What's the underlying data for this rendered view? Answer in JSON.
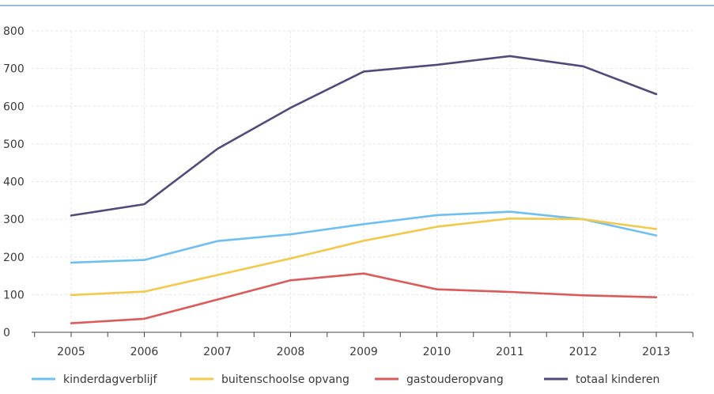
{
  "chart_data": {
    "type": "line",
    "title": "",
    "xlabel": "",
    "ylabel": "",
    "x": [
      "2005",
      "2006",
      "2007",
      "2008",
      "2009",
      "2010",
      "2011",
      "2012",
      "2013"
    ],
    "ylim": [
      0,
      800
    ],
    "yticks": [
      0,
      100,
      200,
      300,
      400,
      500,
      600,
      700,
      800
    ],
    "grid": true,
    "legend_position": "bottom",
    "series": [
      {
        "name": "kinderdagverblijf",
        "color": "#6ec0f0",
        "values": [
          185,
          192,
          242,
          260,
          287,
          311,
          320,
          300,
          257
        ]
      },
      {
        "name": "buitenschoolse opvang",
        "color": "#f3c94b",
        "values": [
          99,
          108,
          152,
          196,
          243,
          280,
          302,
          300,
          274
        ]
      },
      {
        "name": "gastouderopvang",
        "color": "#dc5a5a",
        "values": [
          24,
          36,
          87,
          138,
          156,
          114,
          107,
          98,
          93
        ]
      },
      {
        "name": "totaal kinderen",
        "color": "#514a7c",
        "values": [
          310,
          340,
          487,
          596,
          692,
          710,
          733,
          706,
          632
        ]
      }
    ]
  }
}
